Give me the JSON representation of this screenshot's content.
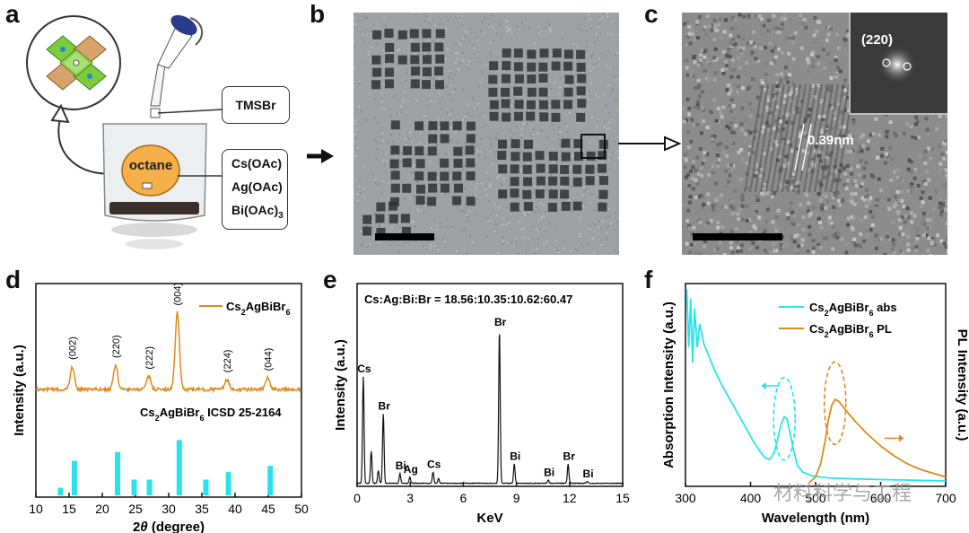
{
  "panels": {
    "a": "a",
    "b": "b",
    "c": "c",
    "d": "d",
    "e": "e",
    "f": "f"
  },
  "panel_a": {
    "reagent_top": "TMSBr",
    "solvent": "octane",
    "precursors": [
      "Cs(OAc)",
      "Ag(OAc)",
      "Bi(OAc)"
    ],
    "bi_subscript": "3"
  },
  "panel_c": {
    "fft_label": "(220)",
    "spacing_label": "0.39nm"
  },
  "chart_data": [
    {
      "panel": "d",
      "type": "line",
      "xlabel_pre": "2",
      "xlabel_theta": "θ",
      "xlabel_post": " (degree)",
      "ylabel": "Intensity (a.u.)",
      "xlim": [
        10,
        50
      ],
      "xticks": [
        10,
        15,
        20,
        25,
        30,
        35,
        40,
        45,
        50
      ],
      "series_name": {
        "base": "Cs",
        "s1": "2",
        "mid": "AgBiBr",
        "s2": "6"
      },
      "reference_name": {
        "base": "Cs",
        "s1": "2",
        "mid": "AgBiBr",
        "s2": "6",
        "post": " ICSD 25-2164"
      },
      "peaks": [
        {
          "x": 15.5,
          "h": 0.28,
          "label": "(002)"
        },
        {
          "x": 22.0,
          "h": 0.3,
          "label": "(220)"
        },
        {
          "x": 27.0,
          "h": 0.16,
          "label": "(222)"
        },
        {
          "x": 31.3,
          "h": 0.95,
          "label": "(004)"
        },
        {
          "x": 38.8,
          "h": 0.12,
          "label": "(224)"
        },
        {
          "x": 44.9,
          "h": 0.14,
          "label": "(044)"
        }
      ],
      "reference_bars": [
        {
          "x": 13.7,
          "h": 0.12
        },
        {
          "x": 15.8,
          "h": 0.55
        },
        {
          "x": 22.3,
          "h": 0.69
        },
        {
          "x": 24.8,
          "h": 0.25
        },
        {
          "x": 27.1,
          "h": 0.25
        },
        {
          "x": 31.6,
          "h": 0.88
        },
        {
          "x": 35.6,
          "h": 0.25
        },
        {
          "x": 39.0,
          "h": 0.37
        },
        {
          "x": 45.3,
          "h": 0.47
        }
      ],
      "colors": {
        "xrd": "#e08a1e",
        "ref": "#27e4ec"
      }
    },
    {
      "panel": "e",
      "type": "line",
      "title": "Cs:Ag:Bi:Br = 18.56:10.35:10.62:60.47",
      "xlabel": "KeV",
      "ylabel": "Intensity (a.u.)",
      "xlim": [
        0,
        15
      ],
      "xticks": [
        0,
        3,
        6,
        9,
        12,
        15
      ],
      "peaks": [
        {
          "x": 0.35,
          "h": 0.66,
          "label": "Cs"
        },
        {
          "x": 0.8,
          "h": 0.2,
          "label": ""
        },
        {
          "x": 1.2,
          "h": 0.08,
          "label": ""
        },
        {
          "x": 1.48,
          "h": 0.43,
          "label": "Br"
        },
        {
          "x": 2.42,
          "h": 0.06,
          "label": "Bi"
        },
        {
          "x": 2.98,
          "h": 0.04,
          "label": "Ag"
        },
        {
          "x": 4.29,
          "h": 0.07,
          "label": "Cs"
        },
        {
          "x": 4.6,
          "h": 0.03,
          "label": ""
        },
        {
          "x": 8.04,
          "h": 0.95,
          "label": "Br"
        },
        {
          "x": 8.88,
          "h": 0.12,
          "label": "Bi"
        },
        {
          "x": 10.8,
          "h": 0.02,
          "label": "Bi"
        },
        {
          "x": 11.92,
          "h": 0.12,
          "label": "Br"
        },
        {
          "x": 13.0,
          "h": 0.01,
          "label": "Bi"
        }
      ],
      "color": "#111111"
    },
    {
      "panel": "f",
      "type": "line",
      "xlabel": "Wavelength (nm)",
      "ylabel_left": "Absorption Intensity (a.u.)",
      "ylabel_right": "PL Intensity (a.u.)",
      "xlim": [
        300,
        700
      ],
      "xticks": [
        300,
        400,
        500,
        600,
        700
      ],
      "series": [
        {
          "base": "Cs",
          "s1": "2",
          "mid": "AgBiBr",
          "s2": "6",
          "post": " abs",
          "color": "#27e4ec",
          "points": [
            [
              302,
              1.0
            ],
            [
              305,
              0.7
            ],
            [
              308,
              0.95
            ],
            [
              311,
              0.62
            ],
            [
              314,
              0.9
            ],
            [
              318,
              0.7
            ],
            [
              322,
              0.82
            ],
            [
              328,
              0.72
            ],
            [
              335,
              0.66
            ],
            [
              345,
              0.58
            ],
            [
              355,
              0.51
            ],
            [
              365,
              0.45
            ],
            [
              375,
              0.39
            ],
            [
              385,
              0.33
            ],
            [
              395,
              0.27
            ],
            [
              405,
              0.21
            ],
            [
              415,
              0.16
            ],
            [
              422,
              0.13
            ],
            [
              428,
              0.12
            ],
            [
              432,
              0.13
            ],
            [
              437,
              0.16
            ],
            [
              442,
              0.23
            ],
            [
              447,
              0.3
            ],
            [
              452,
              0.34
            ],
            [
              456,
              0.33
            ],
            [
              460,
              0.27
            ],
            [
              466,
              0.17
            ],
            [
              472,
              0.09
            ],
            [
              480,
              0.055
            ],
            [
              495,
              0.035
            ],
            [
              520,
              0.025
            ],
            [
              560,
              0.02
            ],
            [
              620,
              0.015
            ],
            [
              700,
              0.01
            ]
          ]
        },
        {
          "base": "Cs",
          "s1": "2",
          "mid": "AgBiBr",
          "s2": "6",
          "post": " PL",
          "color": "#e08a1e",
          "points": [
            [
              490,
              0.0
            ],
            [
              500,
              0.03
            ],
            [
              508,
              0.1
            ],
            [
              515,
              0.22
            ],
            [
              520,
              0.33
            ],
            [
              525,
              0.4
            ],
            [
              530,
              0.43
            ],
            [
              536,
              0.42
            ],
            [
              545,
              0.38
            ],
            [
              560,
              0.32
            ],
            [
              580,
              0.25
            ],
            [
              600,
              0.19
            ],
            [
              620,
              0.14
            ],
            [
              640,
              0.1
            ],
            [
              660,
              0.07
            ],
            [
              680,
              0.05
            ],
            [
              700,
              0.03
            ]
          ]
        }
      ]
    }
  ],
  "watermark": "材料科学与工程"
}
